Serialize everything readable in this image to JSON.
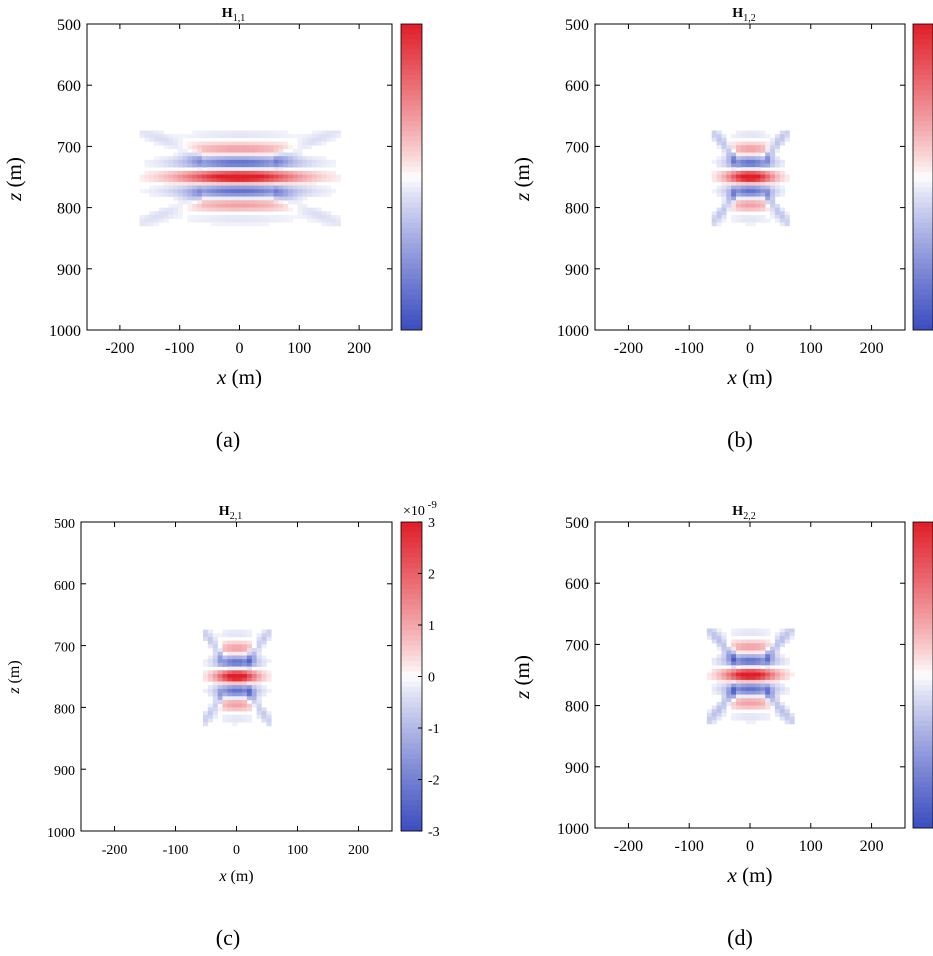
{
  "chart_data": [
    {
      "type": "heatmap",
      "id": "H11",
      "title": "H",
      "title_subscript": "1,1",
      "caption": "(a)",
      "xlabel_var": "x",
      "xlabel_unit": " (m)",
      "ylabel_var": "z",
      "ylabel_unit": " (m)",
      "xlim": [
        -255,
        255
      ],
      "ylim": [
        500,
        1000
      ],
      "y_reversed": true,
      "x_ticks": [
        -200,
        -100,
        0,
        100,
        200
      ],
      "x_tick_labels": [
        "-200",
        "-100",
        "0",
        "100",
        "200"
      ],
      "y_ticks": [
        500,
        600,
        700,
        800,
        900,
        1000
      ],
      "y_tick_labels": [
        "500",
        "600",
        "700",
        "800",
        "900",
        "1000"
      ],
      "colorbar": {
        "colormap": "blue-white-red",
        "clim": [
          -3e-09,
          3e-09
        ],
        "tick_labels": [],
        "exponent_label": ""
      },
      "pattern": {
        "center_x": 0,
        "center_z": 750,
        "half_width_x": 170,
        "half_height_z": 75,
        "wavelength_z": 48,
        "kx": 0.0015,
        "diag_strength": 0.25,
        "threshold": 0.04
      }
    },
    {
      "type": "heatmap",
      "id": "H12",
      "title": "H",
      "title_subscript": "1,2",
      "caption": "(b)",
      "xlabel_var": "x",
      "xlabel_unit": " (m)",
      "ylabel_var": "z",
      "ylabel_unit": " (m)",
      "xlim": [
        -255,
        255
      ],
      "ylim": [
        500,
        1000
      ],
      "y_reversed": true,
      "x_ticks": [
        -200,
        -100,
        0,
        100,
        200
      ],
      "x_tick_labels": [
        "-200",
        "-100",
        "0",
        "100",
        "200"
      ],
      "y_ticks": [
        500,
        600,
        700,
        800,
        900,
        1000
      ],
      "y_tick_labels": [
        "500",
        "600",
        "700",
        "800",
        "900",
        "1000"
      ],
      "colorbar": {
        "colormap": "blue-white-red",
        "clim": [
          -3e-09,
          3e-09
        ],
        "tick_labels": [],
        "exponent_label": ""
      },
      "pattern": {
        "center_x": 0,
        "center_z": 750,
        "half_width_x": 65,
        "half_height_z": 75,
        "wavelength_z": 48,
        "kx": 0.004,
        "diag_strength": 0.5,
        "threshold": 0.05
      }
    },
    {
      "type": "heatmap",
      "id": "H21",
      "title": "H",
      "title_subscript": "2,1",
      "caption": "(c)",
      "xlabel_var": "x",
      "xlabel_unit": " (m)",
      "ylabel_var": "z",
      "ylabel_unit": " (m)",
      "xlim": [
        -255,
        255
      ],
      "ylim": [
        500,
        1000
      ],
      "y_reversed": true,
      "x_ticks": [
        -200,
        -100,
        0,
        100,
        200
      ],
      "x_tick_labels": [
        "-200",
        "-100",
        "0",
        "100",
        "200"
      ],
      "y_ticks": [
        500,
        600,
        700,
        800,
        900,
        1000
      ],
      "y_tick_labels": [
        "500",
        "600",
        "700",
        "800",
        "900",
        "1000"
      ],
      "colorbar": {
        "colormap": "blue-white-red",
        "clim": [
          -3e-09,
          3e-09
        ],
        "ticks": [
          3,
          2,
          1,
          0,
          -1,
          -2,
          -3
        ],
        "tick_labels": [
          "3",
          "2",
          "1",
          "0",
          "-1",
          "-2",
          "-3"
        ],
        "exponent_label": "×10",
        "exponent_power": "-9"
      },
      "pattern": {
        "center_x": 0,
        "center_z": 750,
        "half_width_x": 58,
        "half_height_z": 75,
        "wavelength_z": 48,
        "kx": 0.004,
        "diag_strength": 0.45,
        "threshold": 0.05
      }
    },
    {
      "type": "heatmap",
      "id": "H22",
      "title": "H",
      "title_subscript": "2,2",
      "caption": "(d)",
      "xlabel_var": "x",
      "xlabel_unit": " (m)",
      "ylabel_var": "z",
      "ylabel_unit": " (m)",
      "xlim": [
        -255,
        255
      ],
      "ylim": [
        500,
        1000
      ],
      "y_reversed": true,
      "x_ticks": [
        -200,
        -100,
        0,
        100,
        200
      ],
      "x_tick_labels": [
        "-200",
        "-100",
        "0",
        "100",
        "200"
      ],
      "y_ticks": [
        500,
        600,
        700,
        800,
        900,
        1000
      ],
      "y_tick_labels": [
        "500",
        "600",
        "700",
        "800",
        "900",
        "1000"
      ],
      "colorbar": {
        "colormap": "blue-white-red",
        "clim": [
          -3e-09,
          3e-09
        ],
        "tick_labels": [],
        "exponent_label": ""
      },
      "pattern": {
        "center_x": 0,
        "center_z": 750,
        "half_width_x": 72,
        "half_height_z": 75,
        "wavelength_z": 48,
        "kx": 0.004,
        "diag_strength": 0.55,
        "threshold": 0.05
      }
    }
  ]
}
